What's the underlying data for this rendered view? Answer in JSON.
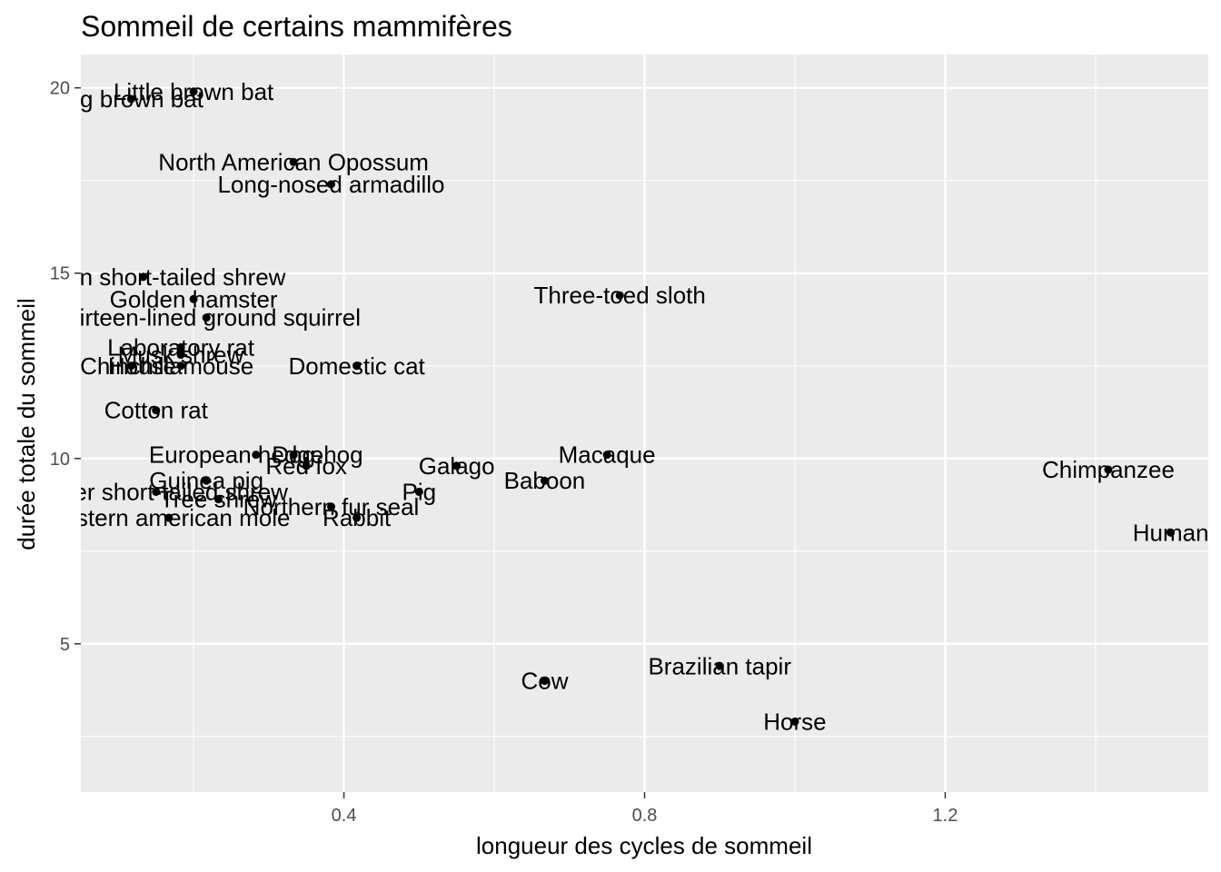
{
  "chart_data": {
    "type": "scatter",
    "title": "Sommeil de certains mammifères",
    "xlabel": "longueur des cycles de sommeil",
    "ylabel": "durée totale du sommeil",
    "xlim": [
      0.05,
      1.55
    ],
    "ylim": [
      1.0,
      20.9
    ],
    "x_ticks": [
      0.4,
      0.8,
      1.2
    ],
    "y_ticks": [
      5,
      10,
      15,
      20
    ],
    "x_tick_labels": [
      "0.4",
      "0.8",
      "1.2"
    ],
    "y_tick_labels": [
      "5",
      "10",
      "15",
      "20"
    ],
    "grid": true,
    "background": "#ebebeb",
    "grid_color": "#ffffff",
    "point_color": "#000000",
    "points": [
      {
        "label": "Little brown bat",
        "x": 0.2,
        "y": 19.9
      },
      {
        "label": "Big brown bat",
        "x": 0.117,
        "y": 19.7
      },
      {
        "label": "North American Opossum",
        "x": 0.333,
        "y": 18.0
      },
      {
        "label": "Long-nosed armadillo",
        "x": 0.383,
        "y": 17.4
      },
      {
        "label": "Northern short-tailed shrew",
        "x": 0.133,
        "y": 14.9
      },
      {
        "label": "Three-toed sloth",
        "x": 0.767,
        "y": 14.4
      },
      {
        "label": "Golden hamster",
        "x": 0.2,
        "y": 14.3
      },
      {
        "label": "Thirteen-lined ground squirrel",
        "x": 0.217,
        "y": 13.8
      },
      {
        "label": "Laboratory rat",
        "x": 0.183,
        "y": 13.0
      },
      {
        "label": "Musk shrew",
        "x": 0.183,
        "y": 12.8
      },
      {
        "label": "House mouse",
        "x": 0.183,
        "y": 12.5
      },
      {
        "label": "Chinchilla",
        "x": 0.117,
        "y": 12.5
      },
      {
        "label": "Domestic cat",
        "x": 0.417,
        "y": 12.5
      },
      {
        "label": "Cotton rat",
        "x": 0.15,
        "y": 11.3
      },
      {
        "label": "European hedgehog",
        "x": 0.283,
        "y": 10.1
      },
      {
        "label": "Dog",
        "x": 0.333,
        "y": 10.1
      },
      {
        "label": "Macaque",
        "x": 0.75,
        "y": 10.1
      },
      {
        "label": "Red fox",
        "x": 0.35,
        "y": 9.8
      },
      {
        "label": "Galago",
        "x": 0.55,
        "y": 9.8
      },
      {
        "label": "Chimpanzee",
        "x": 1.417,
        "y": 9.7
      },
      {
        "label": "Baboon",
        "x": 0.667,
        "y": 9.4
      },
      {
        "label": "Guinea pig",
        "x": 0.217,
        "y": 9.4
      },
      {
        "label": "Lesser short-tailed shrew",
        "x": 0.15,
        "y": 9.1
      },
      {
        "label": "Pig",
        "x": 0.5,
        "y": 9.1
      },
      {
        "label": "Tree shrew",
        "x": 0.233,
        "y": 8.9
      },
      {
        "label": "Northern fur seal",
        "x": 0.383,
        "y": 8.7
      },
      {
        "label": "Eastern american mole",
        "x": 0.167,
        "y": 8.4
      },
      {
        "label": "Rabbit",
        "x": 0.417,
        "y": 8.4
      },
      {
        "label": "Human",
        "x": 1.5,
        "y": 8.0
      },
      {
        "label": "Brazilian tapir",
        "x": 0.9,
        "y": 4.4
      },
      {
        "label": "Cow",
        "x": 0.667,
        "y": 4.0
      },
      {
        "label": "Horse",
        "x": 1.0,
        "y": 2.9
      }
    ]
  }
}
